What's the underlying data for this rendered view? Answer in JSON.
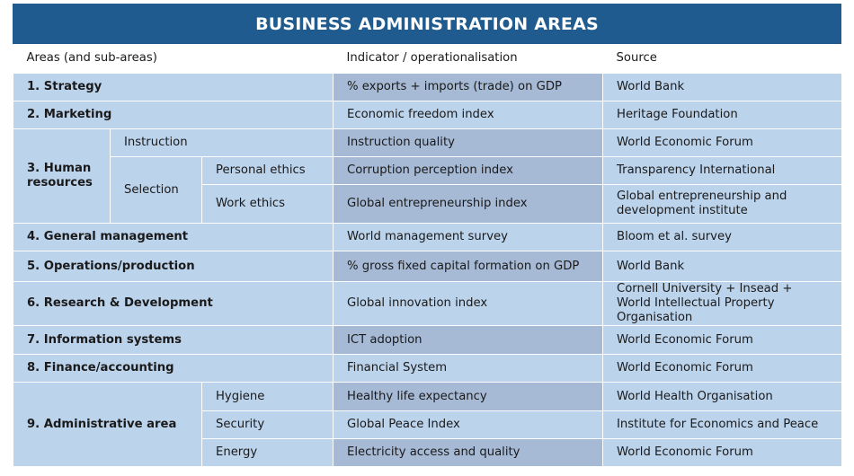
{
  "title": "BUSINESS ADMINISTRATION AREAS",
  "headers": {
    "areas": "Areas (and sub-areas)",
    "indicator": "Indicator / operationalisation",
    "source": "Source"
  },
  "rows": {
    "strategy": {
      "area": "1. Strategy",
      "indicator": "% exports + imports (trade) on GDP",
      "source": "World Bank"
    },
    "marketing": {
      "area": "2. Marketing",
      "indicator": "Economic freedom index",
      "source": "Heritage Foundation"
    },
    "hr": {
      "area": "3. Human resources",
      "instruction": {
        "sub": "Instruction",
        "indicator": "Instruction quality",
        "source": "World Economic Forum"
      },
      "selection": "Selection",
      "personal_ethics": {
        "sub": "Personal ethics",
        "indicator": "Corruption perception index",
        "source": "Transparency International"
      },
      "work_ethics": {
        "sub": "Work ethics",
        "indicator": "Global entrepreneurship index",
        "source": "Global entrepreneurship and development institute"
      }
    },
    "general_management": {
      "area": "4. General management",
      "indicator": "World management survey",
      "source": "Bloom et al. survey"
    },
    "operations": {
      "area": "5. Operations/production",
      "indicator": "% gross fixed capital formation on GDP",
      "source": "World Bank"
    },
    "rnd": {
      "area": "6. Research & Development",
      "indicator": "Global innovation index",
      "source": "Cornell University + Insead + World Intellectual Property Organisation"
    },
    "info_systems": {
      "area": "7. Information systems",
      "indicator": "ICT adoption",
      "source": "World Economic Forum"
    },
    "finance": {
      "area": "8. Finance/accounting",
      "indicator": "Financial System",
      "source": "World Economic Forum"
    },
    "admin": {
      "area": "9. Administrative area",
      "hygiene": {
        "sub": "Hygiene",
        "indicator": "Healthy life expectancy",
        "source": "World Health Organisation"
      },
      "security": {
        "sub": "Security",
        "indicator": "Global Peace Index",
        "source": "Institute for Economics and Peace"
      },
      "energy": {
        "sub": "Energy",
        "indicator": "Electricity access and quality",
        "source": "World Economic Forum"
      }
    }
  }
}
